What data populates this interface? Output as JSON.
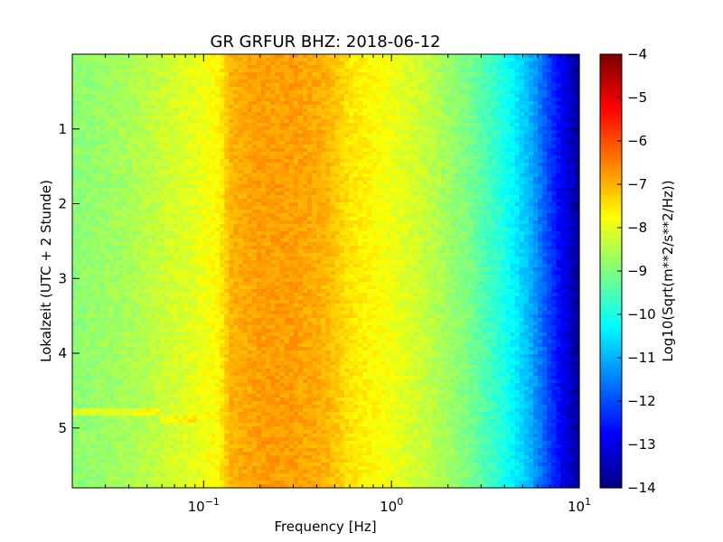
{
  "chart_data": {
    "type": "heatmap",
    "title": "GR GRFUR BHZ: 2018-06-12",
    "xlabel": "Frequency [Hz]",
    "ylabel": "Lokalzeit (UTC + 2 Stunde)",
    "xscale": "log",
    "xlim": [
      0.02,
      10
    ],
    "ylim": [
      5.8,
      0
    ],
    "x_ticks": [
      {
        "value": 0.1,
        "base": "10",
        "exp": "−1"
      },
      {
        "value": 1,
        "base": "10",
        "exp": "0"
      },
      {
        "value": 10,
        "base": "10",
        "exp": "1"
      }
    ],
    "y_ticks": [
      "1",
      "2",
      "3",
      "4",
      "5"
    ],
    "colormap": "jet",
    "colorbar": {
      "label": "Log10(Sqrt(m**2/s**2/Hz))",
      "range": [
        -14,
        -4
      ],
      "ticks": [
        "−4",
        "−5",
        "−6",
        "−7",
        "−8",
        "−9",
        "−10",
        "−11",
        "−12",
        "−13",
        "−14"
      ]
    },
    "spectrum_profile": [
      {
        "freq": 0.02,
        "value": -8.9
      },
      {
        "freq": 0.04,
        "value": -8.6
      },
      {
        "freq": 0.06,
        "value": -8.3
      },
      {
        "freq": 0.09,
        "value": -8.0
      },
      {
        "freq": 0.12,
        "value": -7.7
      },
      {
        "freq": 0.14,
        "value": -7.0
      },
      {
        "freq": 0.2,
        "value": -6.8
      },
      {
        "freq": 0.3,
        "value": -6.8
      },
      {
        "freq": 0.45,
        "value": -7.0
      },
      {
        "freq": 0.6,
        "value": -7.5
      },
      {
        "freq": 1.0,
        "value": -7.9
      },
      {
        "freq": 1.5,
        "value": -8.3
      },
      {
        "freq": 2.5,
        "value": -9.0
      },
      {
        "freq": 4.0,
        "value": -10.0
      },
      {
        "freq": 5.5,
        "value": -11.0
      },
      {
        "freq": 7.5,
        "value": -12.5
      },
      {
        "freq": 10,
        "value": -13.8
      }
    ]
  }
}
